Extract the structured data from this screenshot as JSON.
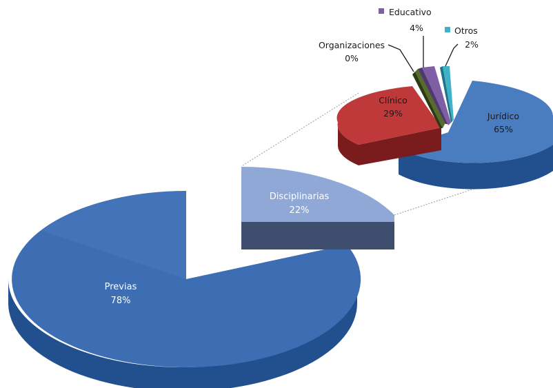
{
  "chart_data": [
    {
      "type": "pie",
      "variant": "3d-pie-of-pie",
      "title": "",
      "slices": [
        {
          "name": "Previas",
          "value": 78,
          "label": "78%",
          "color": "#3d6db2"
        },
        {
          "name": "Disciplinarias",
          "value": 22,
          "label": "22%",
          "color": "#90a8d6"
        }
      ]
    },
    {
      "type": "pie",
      "variant": "3d-secondary-pie",
      "title": "",
      "breakdown_of": "Disciplinarias",
      "slices": [
        {
          "name": "Jurídico",
          "value": 65,
          "label": "65%",
          "color": "#4a7cc0"
        },
        {
          "name": "Clínico",
          "value": 29,
          "label": "29%",
          "color": "#c0393a"
        },
        {
          "name": "Organizaciones",
          "value": 0,
          "label": "0%",
          "color": "#566b2c"
        },
        {
          "name": "Educativo",
          "value": 4,
          "label": "4%",
          "color": "#7e5fa5"
        },
        {
          "name": "Otros",
          "value": 2,
          "label": "2%",
          "color": "#3fb2c8"
        }
      ]
    }
  ]
}
